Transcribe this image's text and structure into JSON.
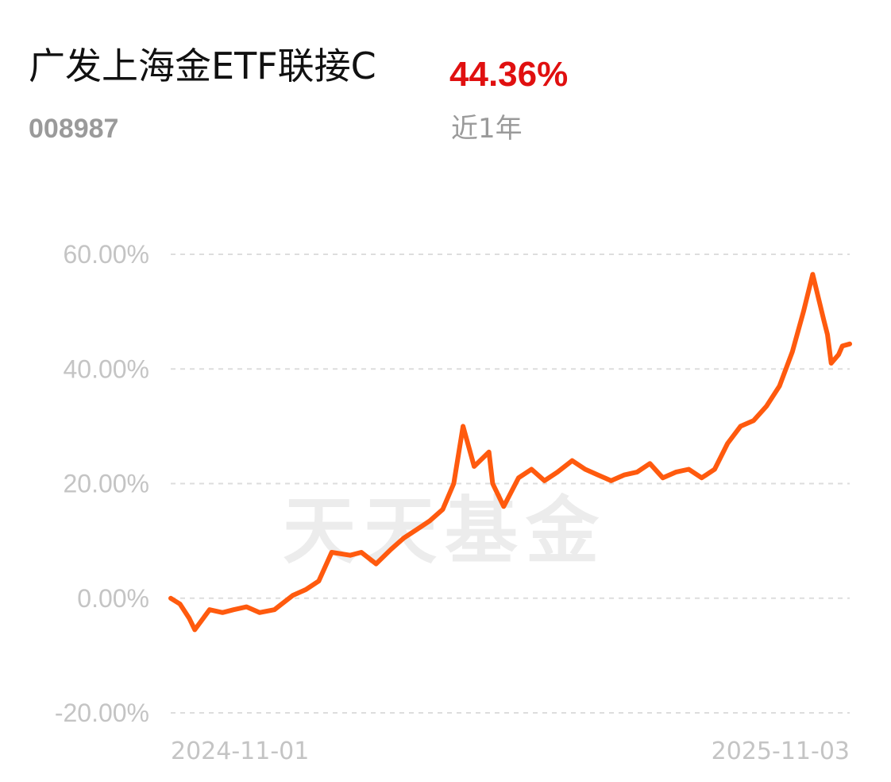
{
  "fund": {
    "name": "广发上海金ETF联接C",
    "code": "008987",
    "return_value": "44.36%",
    "return_period": "近1年"
  },
  "watermark": "天天基金",
  "colors": {
    "line": "#ff5a0e",
    "return": "#e01010",
    "grid": "#dddddd",
    "label": "#c4c4c4"
  },
  "chart_data": {
    "type": "line",
    "title": "",
    "xlabel": "",
    "ylabel": "",
    "ylim": [
      -20,
      60
    ],
    "yticks": [
      60,
      40,
      20,
      0,
      -20
    ],
    "ytick_labels": [
      "60.00%",
      "40.00%",
      "20.00%",
      "0.00%",
      "-20.00%"
    ],
    "x_range": [
      "2024-11-01",
      "2025-11-03"
    ],
    "xtick_labels": [
      "2024-11-01",
      "2025-11-03"
    ],
    "grid": true,
    "series": [
      {
        "x": [
          "2024-11-01",
          "2024-11-06",
          "2024-11-11",
          "2024-11-14",
          "2024-11-22",
          "2024-11-29",
          "2024-12-05",
          "2024-12-12",
          "2024-12-19",
          "2024-12-27",
          "2025-01-06",
          "2025-01-13",
          "2025-01-20",
          "2025-01-27",
          "2025-02-06",
          "2025-02-12",
          "2025-02-20",
          "2025-02-28",
          "2025-03-07",
          "2025-03-14",
          "2025-03-21",
          "2025-03-28",
          "2025-04-03",
          "2025-04-08",
          "2025-04-14",
          "2025-04-22",
          "2025-04-24",
          "2025-04-30",
          "2025-05-08",
          "2025-05-15",
          "2025-05-22",
          "2025-05-29",
          "2025-06-06",
          "2025-06-13",
          "2025-06-20",
          "2025-06-27",
          "2025-07-04",
          "2025-07-11",
          "2025-07-18",
          "2025-07-25",
          "2025-08-01",
          "2025-08-08",
          "2025-08-15",
          "2025-08-22",
          "2025-08-29",
          "2025-09-05",
          "2025-09-12",
          "2025-09-19",
          "2025-09-26",
          "2025-10-03",
          "2025-10-09",
          "2025-10-14",
          "2025-10-20",
          "2025-10-22",
          "2025-10-24",
          "2025-10-28",
          "2025-10-30",
          "2025-11-03"
        ],
        "y": [
          0.0,
          -1.0,
          -3.5,
          -5.5,
          -2.0,
          -2.5,
          -2.0,
          -1.5,
          -2.5,
          -2.0,
          0.5,
          1.5,
          3.0,
          8.0,
          7.5,
          8.0,
          6.0,
          8.5,
          10.5,
          12.0,
          13.5,
          15.5,
          20.0,
          30.0,
          23.0,
          25.5,
          20.0,
          16.0,
          21.0,
          22.5,
          20.5,
          22.0,
          24.0,
          22.5,
          21.5,
          20.5,
          21.5,
          22.0,
          23.5,
          21.0,
          22.0,
          22.5,
          21.0,
          22.5,
          27.0,
          30.0,
          31.0,
          33.5,
          37.0,
          43.0,
          50.0,
          56.5,
          48.5,
          46.0,
          41.0,
          42.5,
          44.0,
          44.36
        ]
      }
    ]
  }
}
